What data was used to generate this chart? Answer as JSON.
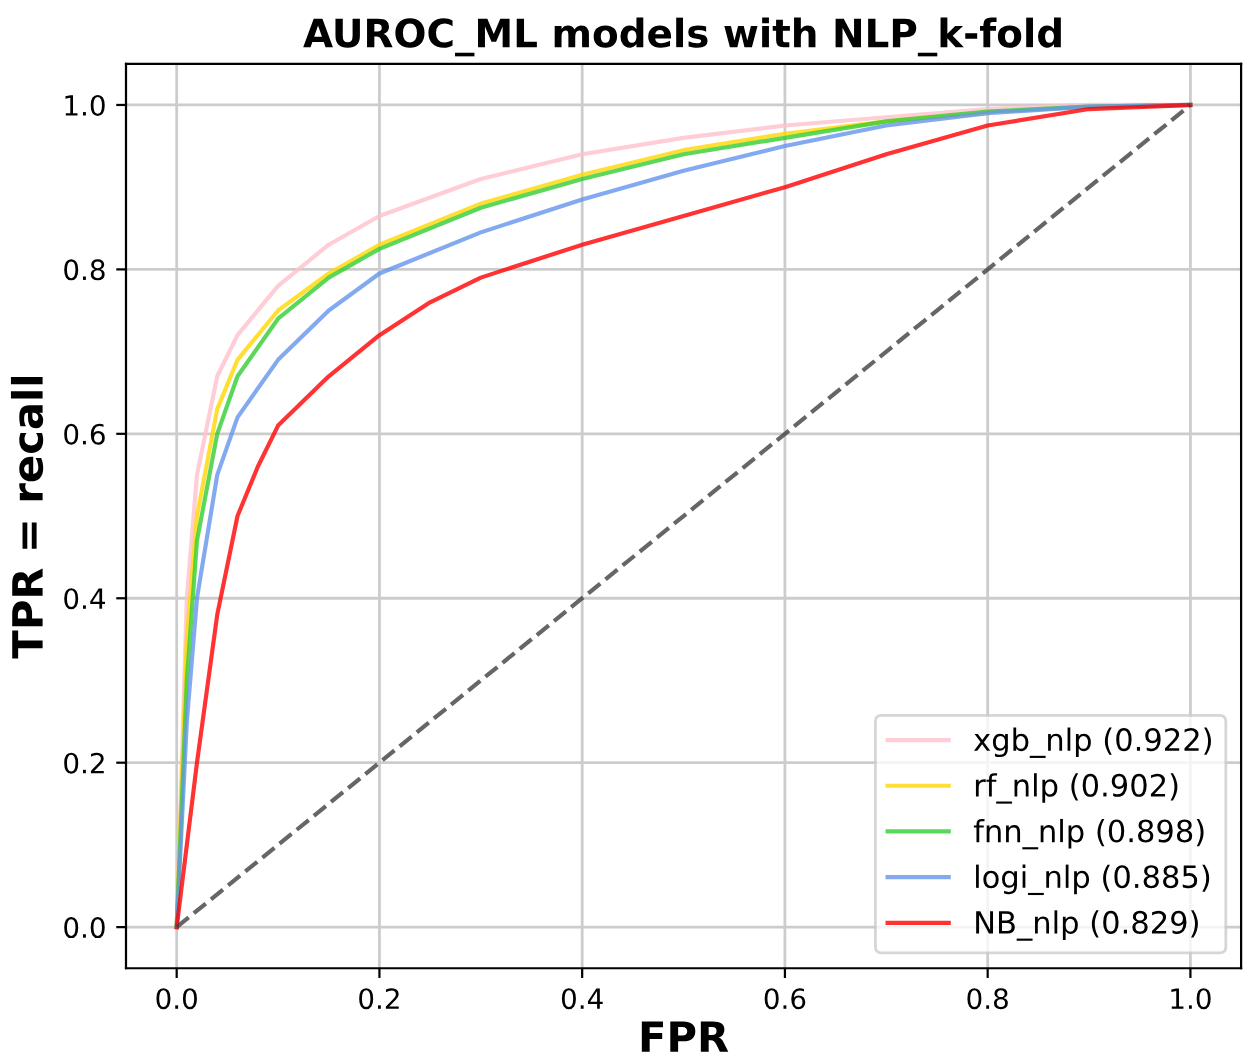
{
  "chart_data": {
    "type": "line",
    "title": "AUROC_ML models with NLP_k-fold",
    "xlabel": "FPR",
    "ylabel": "TPR = recall",
    "xlim": [
      -0.05,
      1.05
    ],
    "ylim": [
      -0.05,
      1.05
    ],
    "xticks": [
      {
        "value": 0,
        "label": "0.0"
      },
      {
        "value": 0.2,
        "label": "0.2"
      },
      {
        "value": 0.4,
        "label": "0.4"
      },
      {
        "value": 0.6,
        "label": "0.6"
      },
      {
        "value": 0.8,
        "label": "0.8"
      },
      {
        "value": 1,
        "label": "1.0"
      }
    ],
    "yticks": [
      {
        "value": 0,
        "label": "0.0"
      },
      {
        "value": 0.2,
        "label": "0.2"
      },
      {
        "value": 0.4,
        "label": "0.4"
      },
      {
        "value": 0.6,
        "label": "0.6"
      },
      {
        "value": 0.8,
        "label": "0.8"
      },
      {
        "value": 1,
        "label": "1.0"
      }
    ],
    "grid": true,
    "legend": "bottom right",
    "series": [
      {
        "name": "xgb_nlp (0.922)",
        "color": "#ffc0cb",
        "x": [
          0,
          0.01,
          0.02,
          0.04,
          0.06,
          0.1,
          0.15,
          0.2,
          0.3,
          0.4,
          0.5,
          0.6,
          0.7,
          0.8,
          0.9,
          1
        ],
        "values": [
          0,
          0.4,
          0.55,
          0.67,
          0.72,
          0.78,
          0.83,
          0.865,
          0.91,
          0.94,
          0.96,
          0.975,
          0.985,
          0.995,
          1,
          1
        ]
      },
      {
        "name": "rf_nlp (0.902)",
        "color": "#ffd700",
        "x": [
          0,
          0.01,
          0.02,
          0.04,
          0.06,
          0.1,
          0.15,
          0.2,
          0.3,
          0.4,
          0.5,
          0.6,
          0.7,
          0.8
        ],
        "values": [
          0,
          0.35,
          0.5,
          0.63,
          0.69,
          0.75,
          0.795,
          0.83,
          0.88,
          0.915,
          0.945,
          0.965,
          0.98,
          0.99
        ]
      },
      {
        "name": "fnn_nlp (0.898)",
        "color": "#32cd32",
        "x": [
          0,
          0.01,
          0.02,
          0.04,
          0.06,
          0.1,
          0.15,
          0.2,
          0.3,
          0.4,
          0.5,
          0.6,
          0.7,
          0.8,
          0.9,
          1
        ],
        "values": [
          0,
          0.3,
          0.47,
          0.6,
          0.67,
          0.74,
          0.79,
          0.825,
          0.875,
          0.91,
          0.94,
          0.96,
          0.98,
          0.992,
          0.998,
          1
        ]
      },
      {
        "name": "logi_nlp (0.885)",
        "color": "#6495ed",
        "x": [
          0,
          0.01,
          0.02,
          0.04,
          0.06,
          0.1,
          0.15,
          0.2,
          0.3,
          0.4,
          0.5,
          0.6,
          0.7,
          0.8,
          0.9,
          1
        ],
        "values": [
          0,
          0.25,
          0.4,
          0.55,
          0.62,
          0.69,
          0.75,
          0.795,
          0.845,
          0.885,
          0.92,
          0.95,
          0.975,
          0.99,
          0.998,
          1
        ]
      },
      {
        "name": "NB_nlp (0.829)",
        "color": "#ff0000",
        "x": [
          0,
          0.02,
          0.04,
          0.06,
          0.08,
          0.1,
          0.15,
          0.2,
          0.25,
          0.3,
          0.4,
          0.5,
          0.6,
          0.7,
          0.8,
          0.9,
          1
        ],
        "values": [
          0,
          0.2,
          0.38,
          0.5,
          0.56,
          0.61,
          0.67,
          0.72,
          0.76,
          0.79,
          0.83,
          0.865,
          0.9,
          0.94,
          0.975,
          0.995,
          1
        ]
      },
      {
        "color": "#404040",
        "line_style": "dashed",
        "x": [
          0,
          1
        ],
        "values": [
          0,
          1
        ]
      }
    ]
  }
}
